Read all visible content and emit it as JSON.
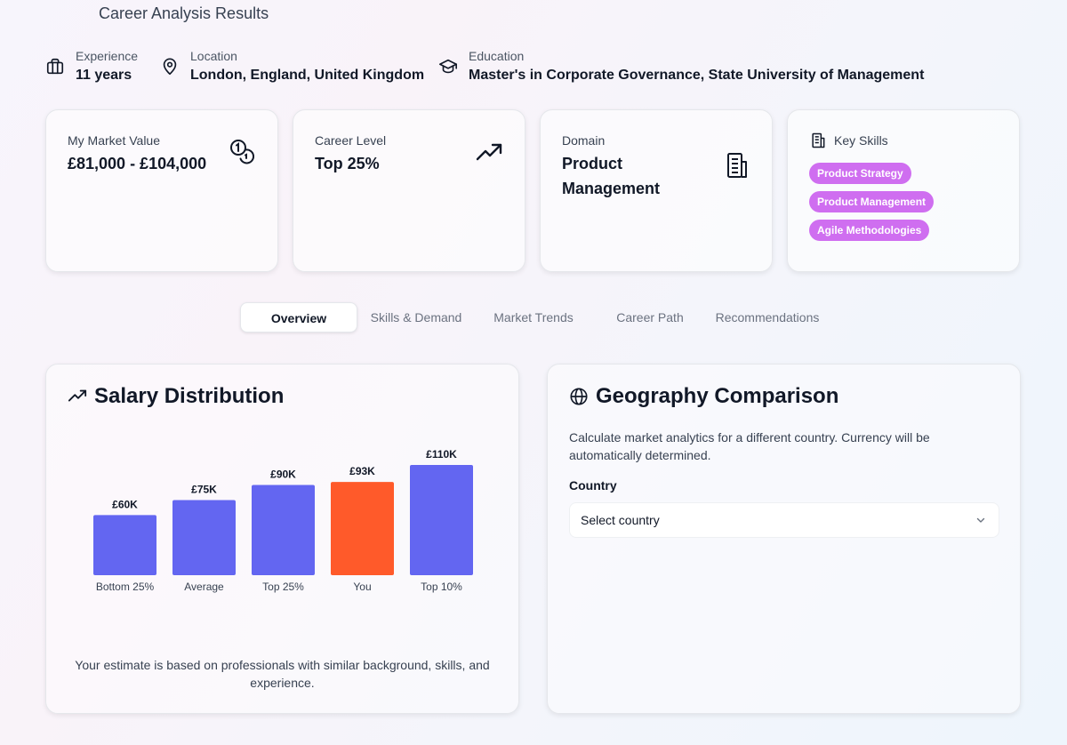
{
  "page": {
    "title": "Career Analysis Results"
  },
  "profile": {
    "experience": {
      "label": "Experience",
      "value": "11 years"
    },
    "location": {
      "label": "Location",
      "value": "London, England, United Kingdom"
    },
    "education": {
      "label": "Education",
      "value": "Master's in Corporate Governance, State University of Management"
    }
  },
  "cards": {
    "market_value": {
      "label": "My Market Value",
      "value": "£81,000 - £104,000",
      "icon": "coins-icon"
    },
    "career_level": {
      "label": "Career Level",
      "value": "Top 25%",
      "icon": "trending-up-icon"
    },
    "domain": {
      "label": "Domain",
      "value": "Product Management",
      "icon": "building-icon"
    },
    "skills": {
      "label": "Key Skills",
      "items": [
        "Product Strategy",
        "Product Management",
        "Agile Methodologies"
      ],
      "pill_color": "#cf6ef0"
    }
  },
  "tabs": [
    {
      "label": "Overview",
      "active": true
    },
    {
      "label": "Skills & Demand",
      "active": false
    },
    {
      "label": "Market Trends",
      "active": false
    },
    {
      "label": "Career Path",
      "active": false
    },
    {
      "label": "Recommendations",
      "active": false
    }
  ],
  "salary": {
    "title": "Salary Distribution",
    "note": "Your estimate is based on professionals with similar background, skills, and experience."
  },
  "chart_data": {
    "type": "bar",
    "categories": [
      "Bottom 25%",
      "Average",
      "Top 25%",
      "You",
      "Top 10%"
    ],
    "values": [
      60,
      75,
      90,
      93,
      110
    ],
    "value_labels": [
      "£60K",
      "£75K",
      "£90K",
      "£93K",
      "£110K"
    ],
    "colors": [
      "#6366f1",
      "#6366f1",
      "#6366f1",
      "#ff5a2a",
      "#6366f1"
    ],
    "title": "",
    "xlabel": "",
    "ylabel": "",
    "ylim": [
      0,
      110
    ],
    "grid": false
  },
  "geography": {
    "title": "Geography Comparison",
    "description": "Calculate market analytics for a different country. Currency will be automatically determined.",
    "country_label": "Country",
    "select_placeholder": "Select country"
  }
}
